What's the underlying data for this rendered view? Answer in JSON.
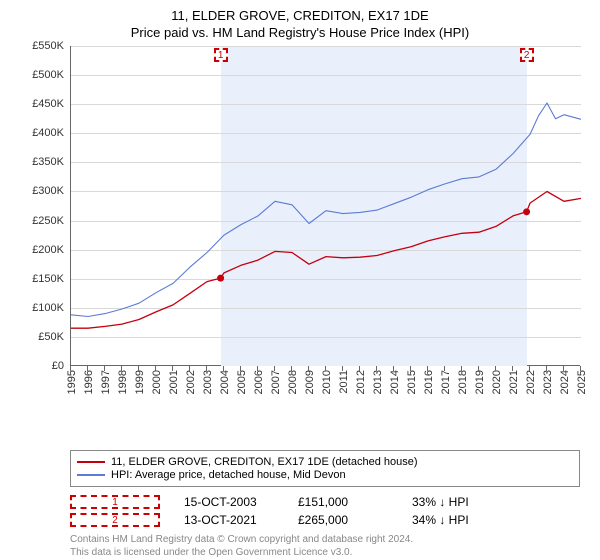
{
  "title": "11, ELDER GROVE, CREDITON, EX17 1DE",
  "subtitle": "Price paid vs. HM Land Registry's House Price Index (HPI)",
  "chart": {
    "type": "line",
    "ylim": [
      0,
      550000
    ],
    "ytick_step": 50000,
    "y_tick_labels": [
      "£0",
      "£50K",
      "£100K",
      "£150K",
      "£200K",
      "£250K",
      "£300K",
      "£350K",
      "£400K",
      "£450K",
      "£500K",
      "£550K"
    ],
    "xlim": [
      1995,
      2025
    ],
    "x_ticks": [
      1995,
      1996,
      1997,
      1998,
      1999,
      2000,
      2001,
      2002,
      2003,
      2004,
      2005,
      2006,
      2007,
      2008,
      2009,
      2010,
      2011,
      2012,
      2013,
      2014,
      2015,
      2016,
      2017,
      2018,
      2019,
      2020,
      2021,
      2022,
      2023,
      2024,
      2025
    ],
    "band_start": 2003.8,
    "band_end": 2021.8,
    "band_color": "#eaf0fb",
    "grid_color": "#d9d9d9",
    "background_color": "#ffffff",
    "series": {
      "property": {
        "label": "11, ELDER GROVE, CREDITON, EX17 1DE (detached house)",
        "color": "#c4000f",
        "data": [
          [
            1995,
            65000
          ],
          [
            1996,
            65000
          ],
          [
            1997,
            68000
          ],
          [
            1998,
            72000
          ],
          [
            1999,
            80000
          ],
          [
            2000,
            93000
          ],
          [
            2001,
            105000
          ],
          [
            2002,
            125000
          ],
          [
            2003,
            145000
          ],
          [
            2003.8,
            151000
          ],
          [
            2004,
            160000
          ],
          [
            2005,
            173000
          ],
          [
            2006,
            182000
          ],
          [
            2007,
            197000
          ],
          [
            2008,
            195000
          ],
          [
            2009,
            175000
          ],
          [
            2010,
            188000
          ],
          [
            2011,
            186000
          ],
          [
            2012,
            187000
          ],
          [
            2013,
            190000
          ],
          [
            2014,
            198000
          ],
          [
            2015,
            205000
          ],
          [
            2016,
            215000
          ],
          [
            2017,
            222000
          ],
          [
            2018,
            228000
          ],
          [
            2019,
            230000
          ],
          [
            2020,
            240000
          ],
          [
            2021,
            258000
          ],
          [
            2021.8,
            265000
          ],
          [
            2022,
            280000
          ],
          [
            2023,
            300000
          ],
          [
            2024,
            283000
          ],
          [
            2025,
            288000
          ]
        ]
      },
      "hpi": {
        "label": "HPI: Average price, detached house, Mid Devon",
        "color": "#5b7bd5",
        "data": [
          [
            1995,
            88000
          ],
          [
            1996,
            85000
          ],
          [
            1997,
            90000
          ],
          [
            1998,
            98000
          ],
          [
            1999,
            108000
          ],
          [
            2000,
            126000
          ],
          [
            2001,
            142000
          ],
          [
            2002,
            170000
          ],
          [
            2003,
            195000
          ],
          [
            2004,
            225000
          ],
          [
            2005,
            243000
          ],
          [
            2006,
            258000
          ],
          [
            2007,
            283000
          ],
          [
            2008,
            277000
          ],
          [
            2009,
            245000
          ],
          [
            2010,
            267000
          ],
          [
            2011,
            262000
          ],
          [
            2012,
            264000
          ],
          [
            2013,
            268000
          ],
          [
            2014,
            279000
          ],
          [
            2015,
            290000
          ],
          [
            2016,
            303000
          ],
          [
            2017,
            313000
          ],
          [
            2018,
            322000
          ],
          [
            2019,
            325000
          ],
          [
            2020,
            338000
          ],
          [
            2021,
            365000
          ],
          [
            2022,
            398000
          ],
          [
            2022.5,
            430000
          ],
          [
            2023,
            452000
          ],
          [
            2023.5,
            425000
          ],
          [
            2024,
            432000
          ],
          [
            2025,
            424000
          ]
        ]
      }
    },
    "sale_markers": [
      {
        "n": "1",
        "x": 2003.8,
        "price": 151000
      },
      {
        "n": "2",
        "x": 2021.8,
        "price": 265000
      }
    ]
  },
  "legend": {
    "prop": "11, ELDER GROVE, CREDITON, EX17 1DE (detached house)",
    "hpi": "HPI: Average price, detached house, Mid Devon"
  },
  "sales": [
    {
      "n": "1",
      "date": "15-OCT-2003",
      "price": "£151,000",
      "delta": "33% ↓ HPI"
    },
    {
      "n": "2",
      "date": "13-OCT-2021",
      "price": "£265,000",
      "delta": "34% ↓ HPI"
    }
  ],
  "footer_line1": "Contains HM Land Registry data © Crown copyright and database right 2024.",
  "footer_line2": "This data is licensed under the Open Government Licence v3.0."
}
